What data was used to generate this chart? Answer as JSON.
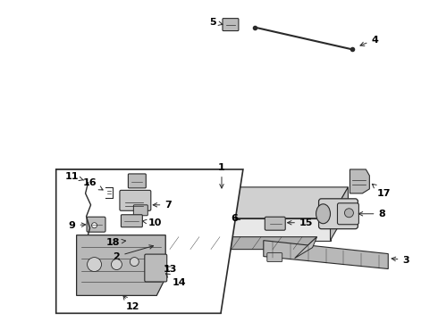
{
  "bg_color": "#ffffff",
  "line_color": "#2a2a2a",
  "fig_width": 4.9,
  "fig_height": 3.6,
  "dpi": 100,
  "lw_main": 0.8,
  "lw_thin": 0.5,
  "label_fs": 8,
  "gray_dark": "#555555",
  "gray_mid": "#888888",
  "gray_light": "#bbbbbb",
  "gray_fill": "#aaaaaa",
  "white": "#ffffff"
}
